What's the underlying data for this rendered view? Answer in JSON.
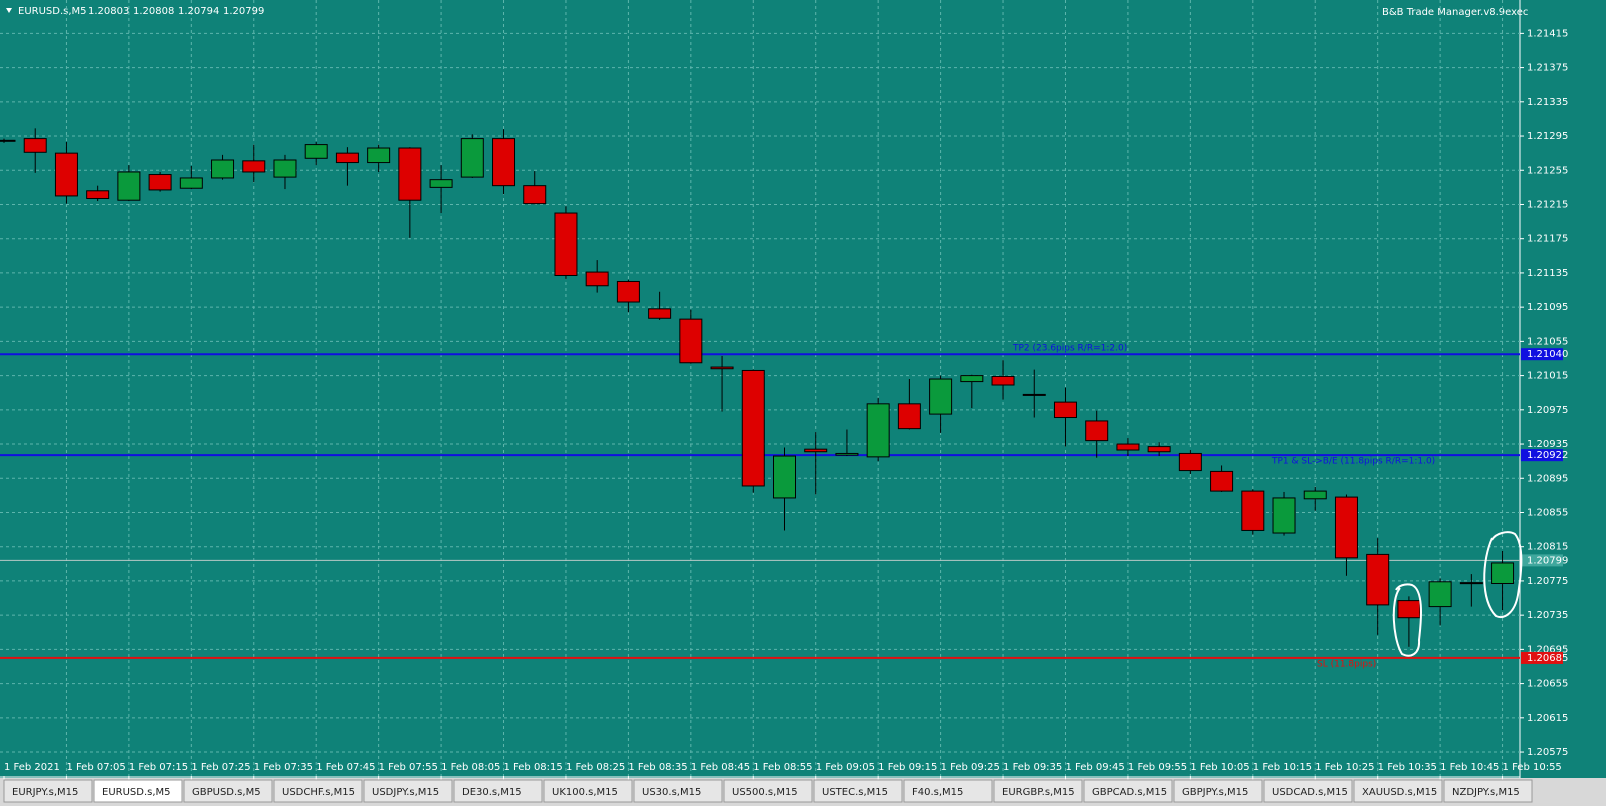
{
  "chart_data": {
    "type": "candlestick",
    "title": "EURUSD.s,M5",
    "header_ohlc": [
      1.20803,
      1.20808,
      1.20794,
      1.20799
    ],
    "indicator": "B&B Trade Manager.v8.9exec",
    "categories": [
      "1 Feb 2021",
      null,
      "1 Feb 07:05",
      null,
      "1 Feb 07:15",
      null,
      "1 Feb 07:25",
      null,
      "1 Feb 07:35",
      null,
      "1 Feb 07:45",
      null,
      "1 Feb 07:55",
      null,
      "1 Feb 08:05",
      null,
      "1 Feb 08:15",
      null,
      "1 Feb 08:25",
      null,
      "1 Feb 08:35",
      null,
      "1 Feb 08:45",
      null,
      "1 Feb 08:55",
      null,
      "1 Feb 09:05",
      null,
      "1 Feb 09:15",
      null,
      "1 Feb 09:25",
      null,
      "1 Feb 09:35",
      null,
      "1 Feb 09:45",
      null,
      "1 Feb 09:55",
      null,
      "1 Feb 10:05",
      null,
      "1 Feb 10:15",
      null,
      "1 Feb 10:25",
      null,
      "1 Feb 10:35",
      null,
      "1 Feb 10:45",
      null,
      "1 Feb 10:55"
    ],
    "open": [
      1.21289,
      1.21292,
      1.21275,
      1.21231,
      1.2122,
      1.2125,
      1.21234,
      1.21246,
      1.21266,
      1.21247,
      1.21269,
      1.21275,
      1.21264,
      1.21281,
      1.21235,
      1.21247,
      1.21292,
      1.21237,
      1.21205,
      1.21136,
      1.21125,
      1.21093,
      1.21081,
      1.21025,
      1.21021,
      1.20872,
      1.20929,
      1.20922,
      1.2092,
      1.20982,
      1.2097,
      1.21008,
      1.21014,
      1.20993,
      1.20984,
      1.20962,
      1.20935,
      1.20932,
      1.20924,
      1.20903,
      1.2088,
      1.20831,
      1.20871,
      1.20873,
      1.20806,
      1.20752,
      1.20745,
      1.20772,
      1.20772
    ],
    "high": [
      1.21292,
      1.21304,
      1.21288,
      1.21237,
      1.21261,
      1.21253,
      1.2126,
      1.21273,
      1.21285,
      1.21273,
      1.21288,
      1.21282,
      1.21285,
      1.21282,
      1.21261,
      1.21297,
      1.21303,
      1.21254,
      1.21213,
      1.2115,
      1.21127,
      1.21113,
      1.21092,
      1.21038,
      1.21022,
      1.20931,
      1.20949,
      1.20952,
      1.20989,
      1.21011,
      1.21015,
      1.21016,
      1.21033,
      1.21022,
      1.21001,
      1.20974,
      1.20942,
      1.20937,
      1.20928,
      1.2091,
      1.20882,
      1.20879,
      1.20885,
      1.20876,
      1.20825,
      1.20757,
      1.20778,
      1.20783,
      1.2081
    ],
    "low": [
      1.21287,
      1.21252,
      1.21216,
      1.21219,
      1.21219,
      1.2123,
      1.21233,
      1.21244,
      1.21241,
      1.21233,
      1.21261,
      1.21237,
      1.21253,
      1.21176,
      1.21205,
      1.21246,
      1.21227,
      1.21215,
      1.21128,
      1.21112,
      1.21089,
      1.2108,
      1.21029,
      1.20973,
      1.20878,
      1.20834,
      1.20876,
      1.20921,
      1.20915,
      1.20952,
      1.20948,
      1.20977,
      1.20987,
      1.20966,
      1.20932,
      1.20919,
      1.20921,
      1.20921,
      1.209,
      1.20879,
      1.20829,
      1.20828,
      1.20857,
      1.20781,
      1.20712,
      1.20698,
      1.20723,
      1.20745,
      1.20741
    ],
    "close": [
      1.2129,
      1.21276,
      1.21225,
      1.21222,
      1.21253,
      1.21232,
      1.21246,
      1.21267,
      1.21253,
      1.21267,
      1.21285,
      1.21264,
      1.21281,
      1.2122,
      1.21244,
      1.21292,
      1.21237,
      1.21216,
      1.21132,
      1.2112,
      1.21101,
      1.21082,
      1.2103,
      1.21023,
      1.20886,
      1.20921,
      1.20926,
      1.20924,
      1.20982,
      1.20953,
      1.21011,
      1.21015,
      1.21004,
      1.20992,
      1.20966,
      1.20939,
      1.20928,
      1.20926,
      1.20904,
      1.2088,
      1.20834,
      1.20872,
      1.2088,
      1.20802,
      1.20747,
      1.20732,
      1.20774,
      1.20773,
      1.20796
    ],
    "up_color": "#0a9a3c",
    "down_color": "#dd0000",
    "ylim": [
      1.20547,
      1.21454
    ],
    "yticks": [
      1.21415,
      1.21375,
      1.21335,
      1.21295,
      1.21255,
      1.21215,
      1.21175,
      1.21135,
      1.21095,
      1.21055,
      1.21015,
      1.20975,
      1.20935,
      1.20895,
      1.20855,
      1.20815,
      1.20775,
      1.20735,
      1.20695,
      1.20655,
      1.20615,
      1.20575
    ],
    "grid": true,
    "levels": [
      {
        "label": "TP2 (23.6pips R/R=1:2.0)",
        "value": 1.2104,
        "value_label": "1.21040",
        "color": "#1010e0"
      },
      {
        "label": "TP1 & SL->B/E (11.8pips R/R=1:1.0)",
        "value": 1.20922,
        "color": "#1010e0"
      },
      {
        "label": "SL (11.8pips)",
        "value": 1.20685,
        "color": "#e01010"
      }
    ],
    "price_line": 1.20799,
    "tabs": [
      "EURJPY.s,M15",
      "EURUSD.s,M5",
      "GBPUSD.s,M5",
      "USDCHF.s,M15",
      "USDJPY.s,M15",
      "DE30.s,M15",
      "UK100.s,M15",
      "US30.s,M15",
      "US500.s,M15",
      "USTEC.s,M15",
      "F40.s,M15",
      "EURGBP.s,M15",
      "GBPCAD.s,M15",
      "GBPJPY.s,M15",
      "USDCAD.s,M15",
      "XAUUSD.s,M15",
      "NZDJPY.s,M15"
    ]
  }
}
